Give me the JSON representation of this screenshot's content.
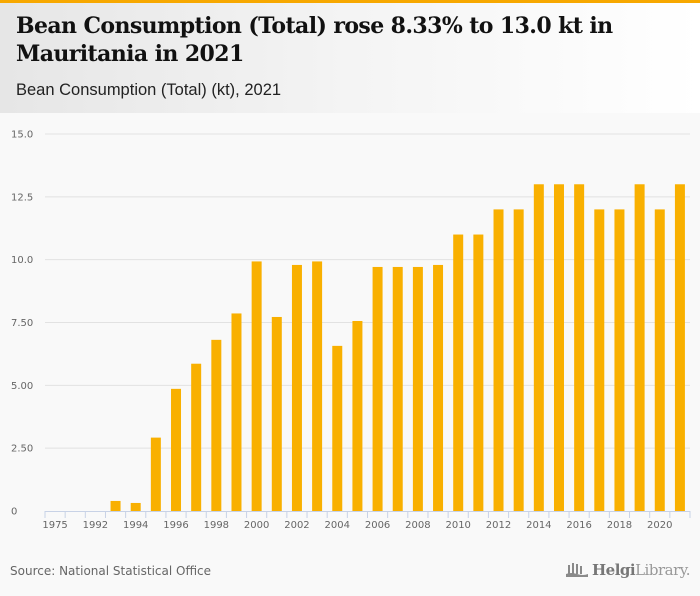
{
  "header": {
    "title": "Bean Consumption (Total) rose 8.33% to 13.0 kt in Mauritania in 2021",
    "subtitle": "Bean Consumption (Total) (kt), 2021"
  },
  "footer": {
    "source": "Source: National Statistical Office",
    "logo_bold": "Helgi",
    "logo_light": "Library."
  },
  "colors": {
    "accent": "#f7a800",
    "bar": "#f9b000",
    "grid": "#e2e2e2",
    "axis": "#c8d2e6"
  },
  "chart_data": {
    "type": "bar",
    "title": "Bean Consumption (Total) rose 8.33% to 13.0 kt in Mauritania in 2021",
    "subtitle": "Bean Consumption (Total) (kt), 2021",
    "xlabel": "",
    "ylabel": "",
    "ylim": [
      0,
      15
    ],
    "yticks": [
      {
        "value": 0,
        "label": "0"
      },
      {
        "value": 2.5,
        "label": "2.50"
      },
      {
        "value": 5,
        "label": "5.00"
      },
      {
        "value": 7.5,
        "label": "7.50"
      },
      {
        "value": 10,
        "label": "10.0"
      },
      {
        "value": 12.5,
        "label": "12.5"
      },
      {
        "value": 15,
        "label": "15.0"
      }
    ],
    "grid": true,
    "categories": [
      "1975",
      "",
      "1992",
      "1993",
      "1994",
      "1995",
      "1996",
      "1997",
      "1998",
      "1999",
      "2000",
      "2001",
      "2002",
      "2003",
      "2004",
      "2005",
      "2006",
      "2007",
      "2008",
      "2009",
      "2010",
      "2011",
      "2012",
      "2013",
      "2014",
      "2015",
      "2016",
      "2017",
      "2018",
      "2019",
      "2020",
      "2021"
    ],
    "xtick_labels": [
      "1975",
      "",
      "1992",
      "",
      "1994",
      "",
      "1996",
      "",
      "1998",
      "",
      "2000",
      "",
      "2002",
      "",
      "2004",
      "",
      "2006",
      "",
      "2008",
      "",
      "2010",
      "",
      "2012",
      "",
      "2014",
      "",
      "2016",
      "",
      "2018",
      "",
      "2020",
      ""
    ],
    "series": [
      {
        "name": "Bean Consumption (Total) (kt)",
        "values": [
          null,
          null,
          null,
          0.4,
          0.32,
          2.92,
          4.86,
          5.86,
          6.81,
          7.86,
          9.93,
          7.72,
          9.79,
          9.93,
          6.57,
          7.56,
          9.71,
          9.71,
          9.71,
          9.79,
          11.0,
          11.0,
          12.0,
          12.0,
          13.0,
          13.0,
          13.0,
          12.0,
          12.0,
          13.0,
          12.0,
          13.0
        ]
      }
    ],
    "source": "Source: National Statistical Office"
  }
}
